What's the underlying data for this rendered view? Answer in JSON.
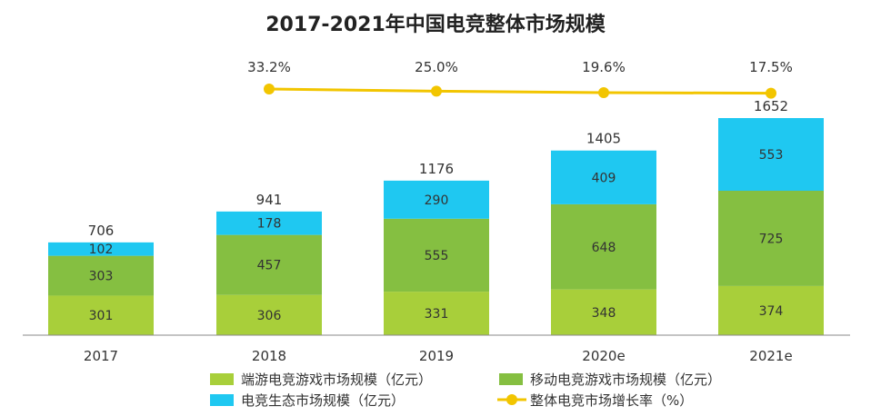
{
  "chart_data": {
    "type": "bar",
    "title": "2017-2021年中国电竞整体市场规模",
    "categories": [
      "2017",
      "2018",
      "2019",
      "2020e",
      "2021e"
    ],
    "series": [
      {
        "name": "端游电竞游戏市场规模（亿元）",
        "values": [
          301,
          306,
          331,
          348,
          374
        ],
        "color": "#a8cf3a"
      },
      {
        "name": "移动电竞游戏市场规模（亿元）",
        "values": [
          303,
          457,
          555,
          648,
          725
        ],
        "color": "#85bf41"
      },
      {
        "name": "电竞生态市场规模（亿元）",
        "values": [
          102,
          178,
          290,
          409,
          553
        ],
        "color": "#1fc8f1"
      }
    ],
    "totals": [
      706,
      941,
      1176,
      1405,
      1652
    ],
    "rate_series": {
      "name": "整体电竞市场增长率（%）",
      "values": [
        null,
        33.2,
        25.0,
        19.6,
        17.5
      ],
      "labels": [
        "",
        "33.2%",
        "25.0%",
        "19.6%",
        "17.5%"
      ],
      "color": "#f2c500"
    },
    "stacked": true,
    "legend": "bottom",
    "grid": false
  }
}
